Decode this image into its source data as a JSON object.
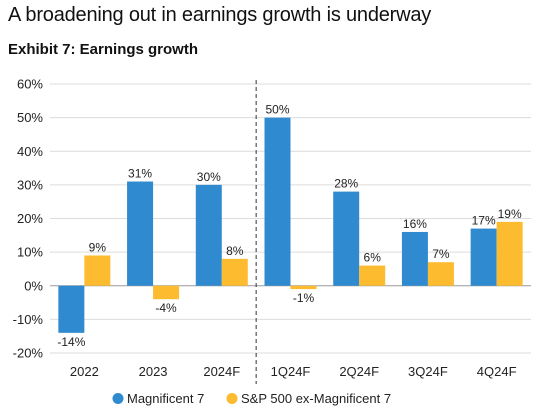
{
  "title": "A broadening out in earnings growth is underway",
  "subtitle": "Exhibit 7: Earnings growth",
  "chart_data": {
    "type": "bar",
    "title": "A broadening out in earnings growth is underway",
    "subtitle": "Exhibit 7: Earnings growth",
    "categories": [
      "2022",
      "2023",
      "2024F",
      "1Q24F",
      "2Q24F",
      "3Q24F",
      "4Q24F"
    ],
    "series": [
      {
        "name": "Magnificent 7",
        "color": "#2f8ad0",
        "values": [
          -14,
          31,
          30,
          50,
          28,
          16,
          17
        ]
      },
      {
        "name": "S&P 500 ex-Magnificent 7",
        "color": "#fdbb30",
        "values": [
          9,
          -4,
          8,
          -1,
          6,
          7,
          19
        ]
      }
    ],
    "value_labels": {
      "Magnificent 7": [
        "-14%",
        "31%",
        "30%",
        "50%",
        "28%",
        "16%",
        "17%"
      ],
      "S&P 500 ex-Magnificent 7": [
        "9%",
        "-4%",
        "8%",
        "-1%",
        "6%",
        "7%",
        "19%"
      ]
    },
    "ylim": [
      -20,
      60
    ],
    "yticks": [
      -20,
      -10,
      0,
      10,
      20,
      30,
      40,
      50,
      60
    ],
    "ytick_labels": [
      "-20%",
      "-10%",
      "0%",
      "10%",
      "20%",
      "30%",
      "40%",
      "50%",
      "60%"
    ],
    "grid": true,
    "divider_after_category": "2024F",
    "legend": "bottom-center",
    "xlabel": "",
    "ylabel": ""
  }
}
